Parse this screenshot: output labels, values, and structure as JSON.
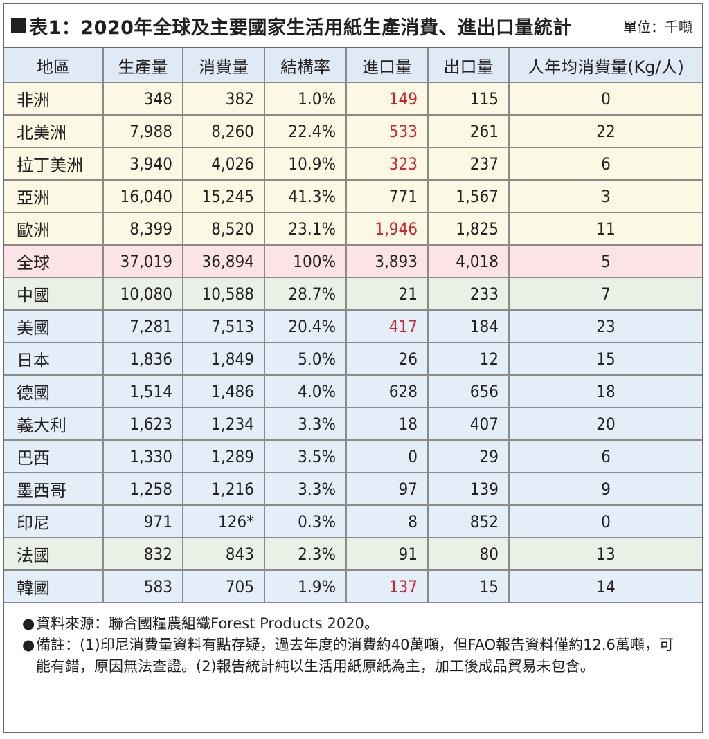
{
  "title": "表1：2020年全球及主要國家生活用紙生產消費、進出口量統計",
  "unit": "單位：千噸",
  "columns": [
    "地區",
    "生產量",
    "消費量",
    "結構率",
    "進口量",
    "出口量",
    "人年均消費量(Kg/人)"
  ],
  "rows": [
    {
      "region": "非洲",
      "production": "348",
      "consumption": "382",
      "share": "1.0%",
      "imports": "149",
      "exports": "115",
      "per_capita": "0",
      "group": "region",
      "imports_highlight": true
    },
    {
      "region": "北美洲",
      "production": "7,988",
      "consumption": "8,260",
      "share": "22.4%",
      "imports": "533",
      "exports": "261",
      "per_capita": "22",
      "group": "region",
      "imports_highlight": true
    },
    {
      "region": "拉丁美洲",
      "production": "3,940",
      "consumption": "4,026",
      "share": "10.9%",
      "imports": "323",
      "exports": "237",
      "per_capita": "6",
      "group": "region",
      "imports_highlight": true
    },
    {
      "region": "亞洲",
      "production": "16,040",
      "consumption": "15,245",
      "share": "41.3%",
      "imports": "771",
      "exports": "1,567",
      "per_capita": "3",
      "group": "region",
      "imports_highlight": false
    },
    {
      "region": "歐洲",
      "production": "8,399",
      "consumption": "8,520",
      "share": "23.1%",
      "imports": "1,946",
      "exports": "1,825",
      "per_capita": "11",
      "group": "region",
      "imports_highlight": true
    },
    {
      "region": "全球",
      "production": "37,019",
      "consumption": "36,894",
      "share": "100%",
      "imports": "3,893",
      "exports": "4,018",
      "per_capita": "5",
      "group": "global",
      "imports_highlight": false
    },
    {
      "region": "中國",
      "production": "10,080",
      "consumption": "10,588",
      "share": "28.7%",
      "imports": "21",
      "exports": "233",
      "per_capita": "7",
      "group": "country-a",
      "imports_highlight": false
    },
    {
      "region": "美國",
      "production": "7,281",
      "consumption": "7,513",
      "share": "20.4%",
      "imports": "417",
      "exports": "184",
      "per_capita": "23",
      "group": "country-b",
      "imports_highlight": true
    },
    {
      "region": "日本",
      "production": "1,836",
      "consumption": "1,849",
      "share": "5.0%",
      "imports": "26",
      "exports": "12",
      "per_capita": "15",
      "group": "country-b",
      "imports_highlight": false
    },
    {
      "region": "德國",
      "production": "1,514",
      "consumption": "1,486",
      "share": "4.0%",
      "imports": "628",
      "exports": "656",
      "per_capita": "18",
      "group": "country-b",
      "imports_highlight": false
    },
    {
      "region": "義大利",
      "production": "1,623",
      "consumption": "1,234",
      "share": "3.3%",
      "imports": "18",
      "exports": "407",
      "per_capita": "20",
      "group": "country-b",
      "imports_highlight": false
    },
    {
      "region": "巴西",
      "production": "1,330",
      "consumption": "1,289",
      "share": "3.5%",
      "imports": "0",
      "exports": "29",
      "per_capita": "6",
      "group": "country-b",
      "imports_highlight": false
    },
    {
      "region": "墨西哥",
      "production": "1,258",
      "consumption": "1,216",
      "share": "3.3%",
      "imports": "97",
      "exports": "139",
      "per_capita": "9",
      "group": "country-b",
      "imports_highlight": false
    },
    {
      "region": "印尼",
      "production": "971",
      "consumption": "126*",
      "share": "0.3%",
      "imports": "8",
      "exports": "852",
      "per_capita": "0",
      "group": "country-b",
      "imports_highlight": false
    },
    {
      "region": "法國",
      "production": "832",
      "consumption": "843",
      "share": "2.3%",
      "imports": "91",
      "exports": "80",
      "per_capita": "13",
      "group": "country-a",
      "imports_highlight": false
    },
    {
      "region": "韓國",
      "production": "583",
      "consumption": "705",
      "share": "1.9%",
      "imports": "137",
      "exports": "15",
      "per_capita": "14",
      "group": "country-b",
      "imports_highlight": true
    }
  ],
  "notes": [
    {
      "bullet": "●",
      "text": "資料來源：聯合國糧農組織Forest Products 2020。"
    },
    {
      "bullet": "●",
      "text": "備註：(1)印尼消費量資料有點存疑，過去年度的消費約40萬噸，但FAO報告資料僅約12.6萬噸，可能有錯，原因無法查證。(2)報告統計純以生活用紙原紙為主，加工後成品貿易未包含。"
    }
  ],
  "colors": {
    "highlight_red": "#d1202f",
    "header_bg": "#dfeaf6",
    "region_bg": "#fbf8e3",
    "global_bg": "#fbe3e6",
    "country_green_bg": "#e9f1e7",
    "country_blue_bg": "#e4eef9"
  }
}
